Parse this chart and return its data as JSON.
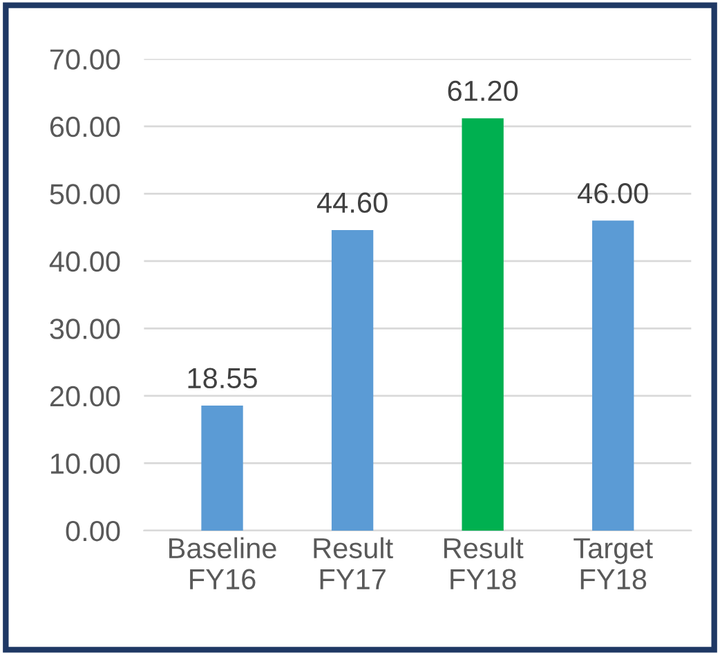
{
  "chart_data": {
    "type": "bar",
    "categories": [
      "Baseline\nFY16",
      "Result\nFY17",
      "Result\nFY18",
      "Target\nFY18"
    ],
    "values": [
      18.55,
      44.6,
      61.2,
      46.0
    ],
    "colors": [
      "#5b9bd5",
      "#5b9bd5",
      "#00b050",
      "#5b9bd5"
    ],
    "value_labels": [
      "18.55",
      "44.60",
      "61.20",
      "46.00"
    ],
    "ylim": [
      0,
      70
    ],
    "yticks": [
      {
        "value": 0,
        "label": "0.00"
      },
      {
        "value": 10,
        "label": "10.00"
      },
      {
        "value": 20,
        "label": "20.00"
      },
      {
        "value": 30,
        "label": "30.00"
      },
      {
        "value": 40,
        "label": "40.00"
      },
      {
        "value": 50,
        "label": "50.00"
      },
      {
        "value": 60,
        "label": "60.00"
      },
      {
        "value": 70,
        "label": "70.00"
      }
    ],
    "grid": "y",
    "legend": false
  }
}
